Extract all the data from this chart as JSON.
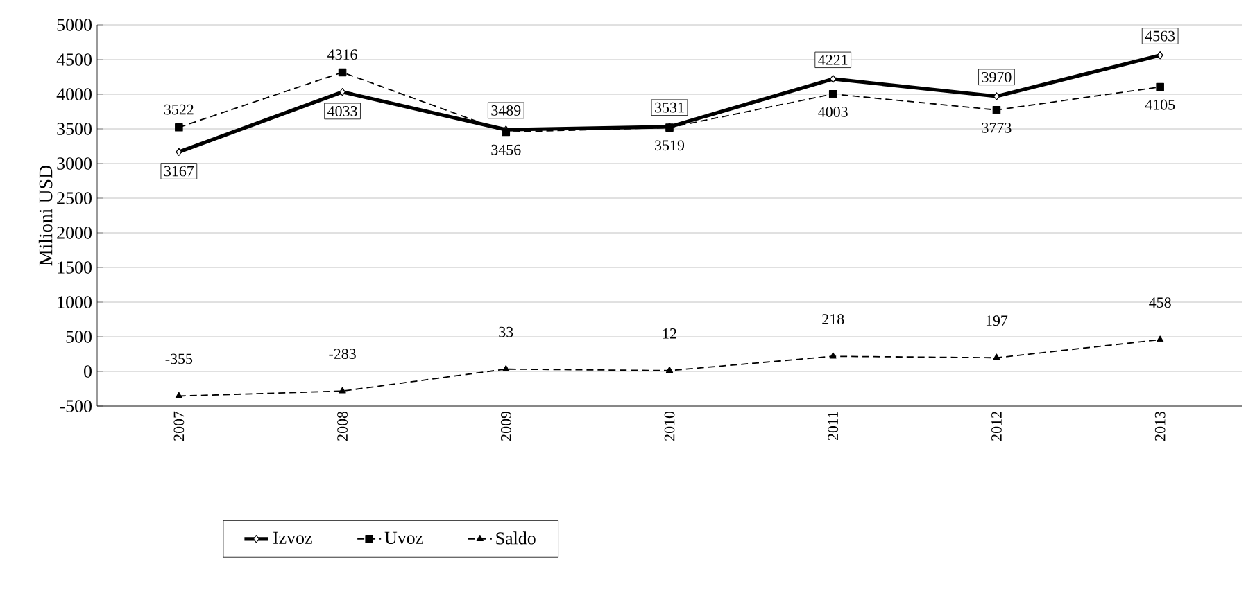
{
  "chart_data": {
    "type": "line",
    "ylabel": "Milioni USD",
    "categories": [
      "2007",
      "2008",
      "2009",
      "2010",
      "2011",
      "2012",
      "2013"
    ],
    "series": [
      {
        "name": "Izvoz",
        "color": "#000000",
        "marker": "diamond",
        "line_style": "solid",
        "values": [
          3167,
          4033,
          3489,
          3531,
          4221,
          3970,
          4563
        ]
      },
      {
        "name": "Uvoz",
        "color": "#000000",
        "marker": "square",
        "line_style": "dashed",
        "values": [
          3522,
          4316,
          3456,
          3519,
          4003,
          3773,
          4105
        ]
      },
      {
        "name": "Saldo",
        "color": "#000000",
        "marker": "triangle",
        "line_style": "dashed",
        "values": [
          -355,
          -283,
          33,
          12,
          218,
          197,
          458
        ]
      }
    ],
    "ylim": [
      -500,
      5000
    ],
    "yticks": [
      -500,
      0,
      500,
      1000,
      1500,
      2000,
      2500,
      3000,
      3500,
      4000,
      4500,
      5000
    ],
    "grid": "y",
    "legend": "bottom",
    "data_labels": true
  }
}
